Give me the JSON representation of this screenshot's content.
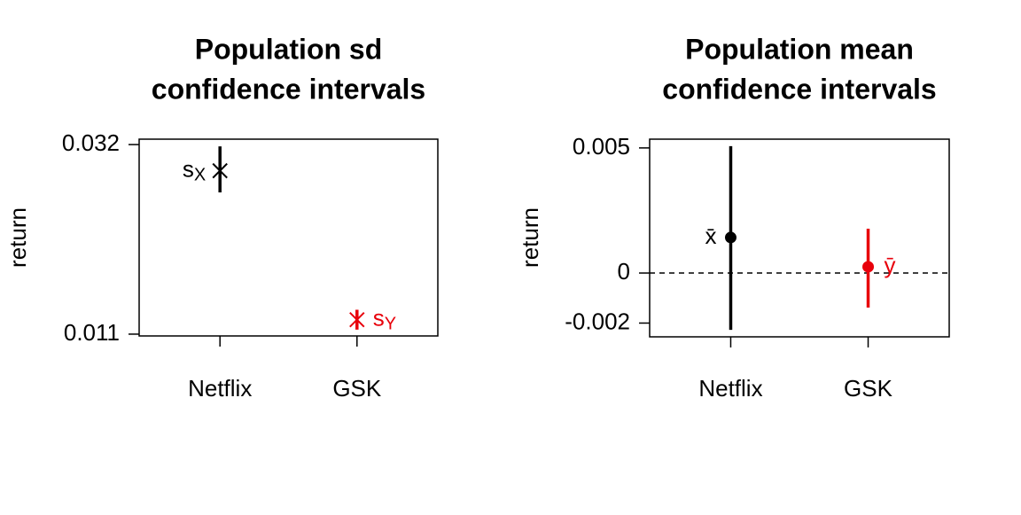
{
  "chart_data": [
    {
      "type": "interval",
      "title": [
        "Population sd",
        "confidence intervals"
      ],
      "ylabel": "return",
      "categories": [
        "Netflix",
        "GSK"
      ],
      "colors": [
        "#000000",
        "#e8000b"
      ],
      "marker": "cross",
      "values": [
        0.0291,
        0.0126
      ],
      "lower": [
        0.0267,
        0.0115
      ],
      "upper": [
        0.0318,
        0.0137
      ],
      "point_labels": [
        {
          "text": "s",
          "sub": "X"
        },
        {
          "text": "s",
          "sub": "Y"
        }
      ],
      "ylim": [
        0.0108,
        0.0326
      ],
      "yticks": [
        0.011,
        0.032
      ]
    },
    {
      "type": "interval",
      "title": [
        "Population mean",
        "confidence intervals"
      ],
      "ylabel": "return",
      "categories": [
        "Netflix",
        "GSK"
      ],
      "colors": [
        "#000000",
        "#e8000b"
      ],
      "marker": "dot",
      "values": [
        0.00142,
        0.00025
      ],
      "lower": [
        -0.00227,
        -0.00138
      ],
      "upper": [
        0.00507,
        0.00177
      ],
      "point_labels": [
        {
          "text": "x̄"
        },
        {
          "text": "ȳ"
        }
      ],
      "hline": 0,
      "ylim": [
        -0.00255,
        0.00535
      ],
      "yticks": [
        -0.002,
        0,
        0.005
      ]
    }
  ]
}
